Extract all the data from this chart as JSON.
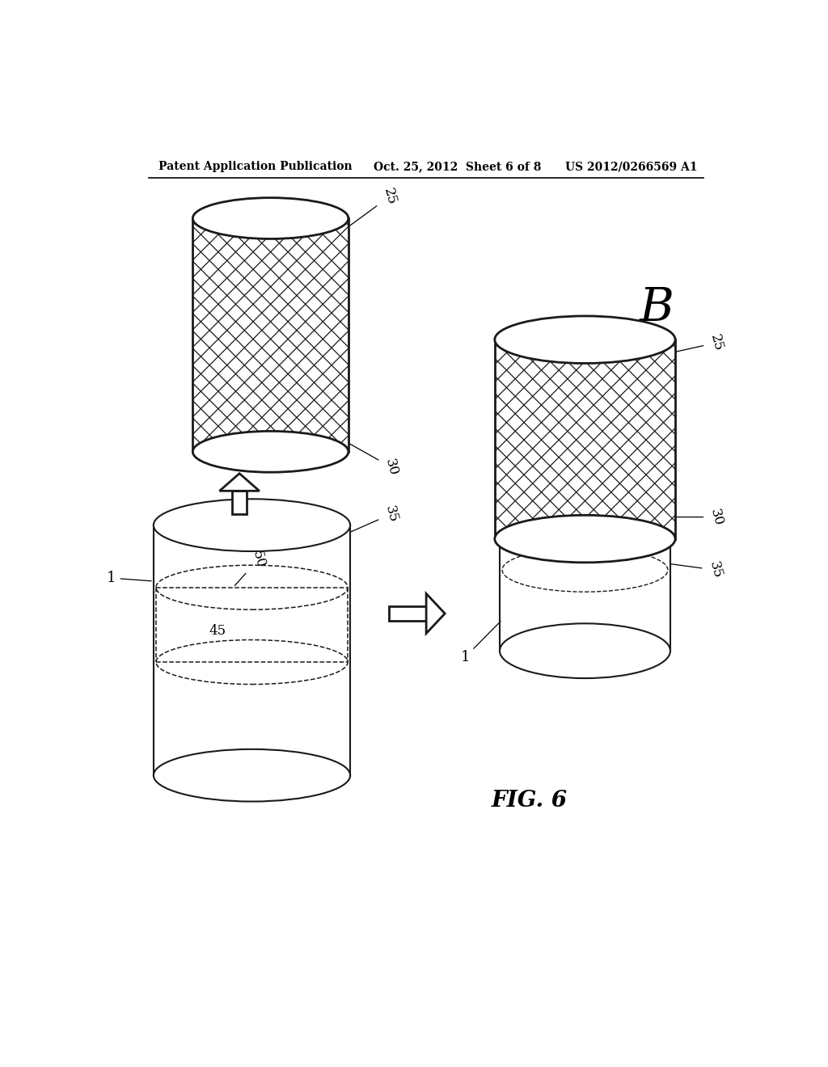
{
  "bg_color": "#ffffff",
  "header_left": "Patent Application Publication",
  "header_mid": "Oct. 25, 2012  Sheet 6 of 8",
  "header_right": "US 2012/0266569 A1",
  "fig_label": "FIG. 6",
  "label_B": "B",
  "net_top_label": "25",
  "net_bot_label": "30",
  "meat_top_label": "35",
  "meat_mid_label": "50",
  "meat_inner_label": "45",
  "meat_ref_label": "1",
  "comb_net_top_label": "25",
  "comb_net_bot_label": "30",
  "comb_meat_label": "35",
  "comb_ref_label": "1"
}
